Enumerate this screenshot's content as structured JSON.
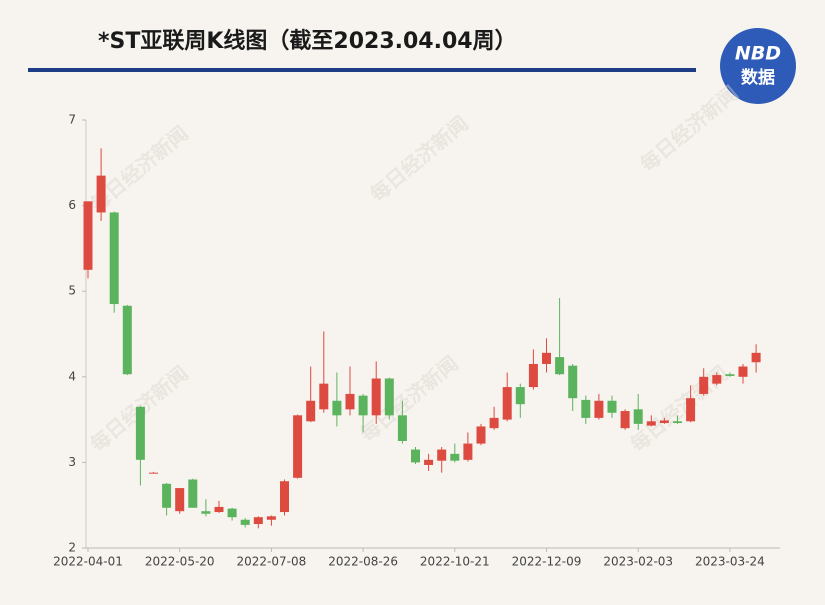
{
  "chart_data": {
    "type": "candlestick",
    "title": "*ST亚联周K线图（截至2023.04.04周）",
    "categories": [
      "2022-04-01",
      null,
      null,
      null,
      null,
      null,
      null,
      "2022-05-20",
      null,
      null,
      null,
      null,
      null,
      null,
      "2022-07-08",
      null,
      null,
      null,
      null,
      null,
      null,
      "2022-08-26",
      null,
      null,
      null,
      null,
      null,
      null,
      "2022-10-21",
      null,
      null,
      null,
      null,
      null,
      null,
      "2022-12-09",
      null,
      null,
      null,
      null,
      null,
      null,
      "2023-02-03",
      null,
      null,
      null,
      null,
      null,
      null,
      "2023-03-24",
      null,
      null
    ],
    "open": [
      5.25,
      5.92,
      5.92,
      4.83,
      3.65,
      2.88,
      2.75,
      2.43,
      2.8,
      2.43,
      2.42,
      2.46,
      2.33,
      2.28,
      2.33,
      2.42,
      2.82,
      3.48,
      3.62,
      3.72,
      3.62,
      3.78,
      3.55,
      3.98,
      3.55,
      3.15,
      2.97,
      3.02,
      3.1,
      3.03,
      3.22,
      3.4,
      3.5,
      3.88,
      3.88,
      4.15,
      4.23,
      4.13,
      3.73,
      3.52,
      3.72,
      3.4,
      3.62,
      3.43,
      3.46,
      3.48,
      3.48,
      3.8,
      3.92,
      4.03,
      4.0,
      4.17
    ],
    "high": [
      6.05,
      6.67,
      5.93,
      4.84,
      3.66,
      2.89,
      2.76,
      2.7,
      2.81,
      2.57,
      2.55,
      2.47,
      2.35,
      2.37,
      2.38,
      2.8,
      3.56,
      4.12,
      4.53,
      4.05,
      4.12,
      3.8,
      4.18,
      3.99,
      3.72,
      3.18,
      3.1,
      3.18,
      3.22,
      3.35,
      3.45,
      3.65,
      4.05,
      3.92,
      4.32,
      4.45,
      4.92,
      4.15,
      3.78,
      3.8,
      3.78,
      3.62,
      3.8,
      3.55,
      3.52,
      3.55,
      3.9,
      4.1,
      4.05,
      4.05,
      4.15,
      4.38
    ],
    "low": [
      5.15,
      5.82,
      4.75,
      4.02,
      2.73,
      2.87,
      2.38,
      2.4,
      2.47,
      2.37,
      2.41,
      2.32,
      2.24,
      2.23,
      2.26,
      2.38,
      2.81,
      3.47,
      3.58,
      3.42,
      3.55,
      3.35,
      3.45,
      3.5,
      3.22,
      2.98,
      2.9,
      2.88,
      3.0,
      3.01,
      3.2,
      3.38,
      3.48,
      3.52,
      3.85,
      4.05,
      4.02,
      3.6,
      3.45,
      3.5,
      3.52,
      3.38,
      3.38,
      3.42,
      3.45,
      3.45,
      3.47,
      3.78,
      3.9,
      4.0,
      3.92,
      4.05
    ],
    "close": [
      6.05,
      6.35,
      4.85,
      4.03,
      3.03,
      2.88,
      2.47,
      2.7,
      2.47,
      2.4,
      2.48,
      2.36,
      2.27,
      2.36,
      2.37,
      2.78,
      3.55,
      3.72,
      3.92,
      3.55,
      3.8,
      3.55,
      3.98,
      3.55,
      3.25,
      3.0,
      3.03,
      3.15,
      3.02,
      3.22,
      3.42,
      3.52,
      3.88,
      3.68,
      4.15,
      4.28,
      4.03,
      3.75,
      3.52,
      3.72,
      3.58,
      3.6,
      3.45,
      3.48,
      3.49,
      3.46,
      3.75,
      4.0,
      4.02,
      4.01,
      4.12,
      4.28
    ],
    "up_color": "#dc4a40",
    "down_color": "#5bb35e",
    "ylim": [
      2,
      7
    ],
    "yticks": [
      2,
      3,
      4,
      5,
      6,
      7
    ]
  },
  "logo": {
    "line1": "NBD",
    "line2": "数据"
  },
  "watermark": "每日经济新闻"
}
